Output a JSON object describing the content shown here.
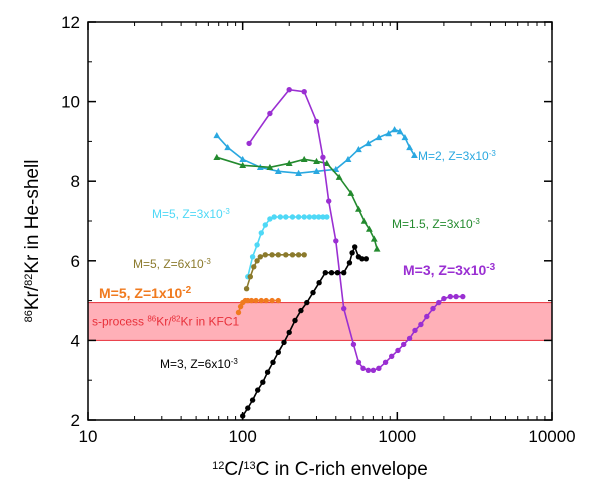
{
  "chart_data": {
    "type": "scatter",
    "xscale": "log",
    "xlim": [
      10,
      10000
    ],
    "ylim": [
      2,
      12
    ],
    "x_ticks": [
      "10",
      "100",
      "1000",
      "10000"
    ],
    "y_ticks": [
      "2",
      "4",
      "6",
      "8",
      "10",
      "12"
    ],
    "xlabel": {
      "sup1": "12",
      "base1": "C/",
      "sup2": "13",
      "base2": "C in C-rich envelope"
    },
    "ylabel": {
      "sup1": "86",
      "base1": "Kr/",
      "sup2": "82",
      "base2": "Kr in He-shell"
    },
    "band": {
      "y": [
        4.0,
        4.95
      ],
      "x": [
        10,
        10000
      ],
      "color": "#ff8f9a",
      "label": {
        "pre": "s-process ",
        "sup1": "86",
        "mid": "Kr/",
        "sup2": "82",
        "post": "Kr in KFC1"
      }
    },
    "series": [
      {
        "name": "M=2, Z=3x10",
        "exp": "-3",
        "color": "#2aa8e0",
        "marker": "triangle",
        "x": [
          68,
          80,
          100,
          130,
          170,
          230,
          300,
          400,
          480,
          560,
          650,
          760,
          880,
          960,
          1040,
          1120,
          1200,
          1290
        ],
        "y": [
          9.15,
          8.85,
          8.55,
          8.35,
          8.25,
          8.2,
          8.25,
          8.3,
          8.55,
          8.8,
          8.95,
          9.1,
          9.2,
          9.3,
          9.25,
          9.1,
          8.85,
          8.65
        ]
      },
      {
        "name": "M=1.5, Z=3x10",
        "exp": "-3",
        "color": "#238a2e",
        "marker": "triangle",
        "x": [
          68,
          100,
          150,
          200,
          250,
          300,
          350,
          420,
          500,
          560,
          610,
          660,
          710,
          740
        ],
        "y": [
          8.6,
          8.4,
          8.35,
          8.45,
          8.55,
          8.5,
          8.45,
          8.1,
          7.7,
          7.3,
          7.0,
          6.8,
          6.55,
          6.3
        ]
      },
      {
        "name": "M=3, Z=3x10",
        "exp": "-3",
        "color": "#9a2fd2",
        "marker": "circle",
        "x": [
          110,
          150,
          200,
          250,
          300,
          330,
          360,
          400,
          450,
          520,
          560,
          600,
          650,
          700,
          760,
          840,
          920,
          1010,
          1100,
          1200,
          1300,
          1420,
          1550,
          1700,
          1850,
          2000,
          2200,
          2400,
          2650
        ],
        "y": [
          8.95,
          9.7,
          10.3,
          10.25,
          9.5,
          8.6,
          7.5,
          6.5,
          4.8,
          3.9,
          3.45,
          3.3,
          3.25,
          3.25,
          3.3,
          3.45,
          3.6,
          3.75,
          3.9,
          4.05,
          4.25,
          4.4,
          4.6,
          4.8,
          4.95,
          5.05,
          5.1,
          5.1,
          5.1
        ],
        "bold": true
      },
      {
        "name": "M=5, Z=3x10",
        "exp": "-3",
        "color": "#4ed8f6",
        "marker": "circle",
        "x": [
          108,
          116,
          124,
          132,
          140,
          150,
          160,
          175,
          190,
          210,
          230,
          250,
          270,
          290,
          310,
          330,
          350
        ],
        "y": [
          5.6,
          6.1,
          6.4,
          6.7,
          6.9,
          7.05,
          7.1,
          7.1,
          7.1,
          7.1,
          7.1,
          7.1,
          7.1,
          7.1,
          7.1,
          7.1,
          7.1
        ]
      },
      {
        "name": "M=5, Z=6x10",
        "exp": "-3",
        "color": "#8b7a2c",
        "marker": "circle",
        "x": [
          106,
          112,
          118,
          124,
          130,
          140,
          155,
          170,
          190,
          210,
          230,
          250
        ],
        "y": [
          5.3,
          5.6,
          5.85,
          6.0,
          6.1,
          6.15,
          6.15,
          6.15,
          6.15,
          6.15,
          6.15,
          6.15
        ]
      },
      {
        "name": "M=5, Z=1x10",
        "exp": "-2",
        "color": "#f07a1e",
        "marker": "circle",
        "x": [
          94,
          97,
          100,
          104,
          108,
          114,
          122,
          132,
          142,
          155,
          170
        ],
        "y": [
          4.7,
          4.85,
          4.95,
          5.0,
          5.0,
          5.0,
          5.0,
          5.0,
          5.0,
          5.0,
          5.0
        ],
        "bold": true
      },
      {
        "name": "M=3, Z=6x10",
        "exp": "-3",
        "color": "#000000",
        "marker": "circle",
        "x": [
          100,
          108,
          116,
          125,
          135,
          145,
          157,
          170,
          185,
          200,
          218,
          238,
          260,
          285,
          312,
          342,
          375,
          410,
          450,
          490,
          510,
          530,
          560,
          590,
          630
        ],
        "y": [
          2.1,
          2.3,
          2.5,
          2.75,
          2.95,
          3.2,
          3.45,
          3.7,
          3.95,
          4.2,
          4.5,
          4.75,
          4.95,
          5.2,
          5.45,
          5.7,
          5.7,
          5.7,
          5.7,
          5.95,
          6.2,
          6.35,
          6.1,
          6.05,
          6.05
        ]
      }
    ]
  }
}
